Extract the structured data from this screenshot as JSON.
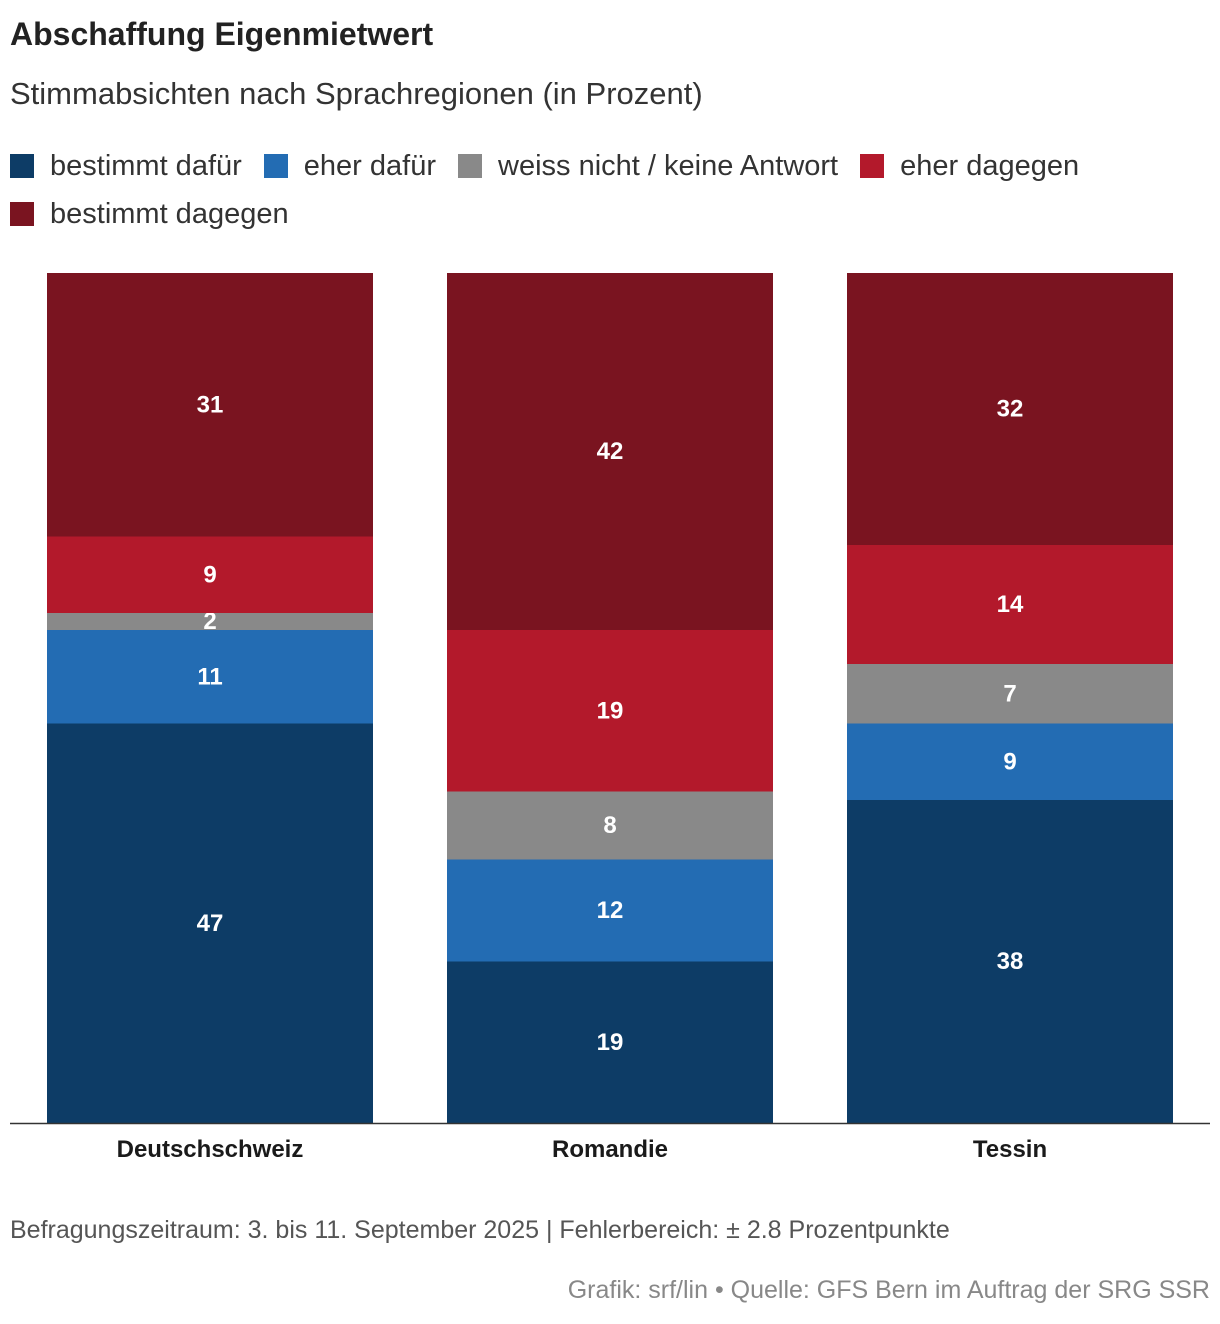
{
  "chart_data": {
    "type": "bar",
    "stacked": true,
    "title": "Abschaffung Eigenmietwert",
    "subtitle": "Stimmabsichten nach Sprachregionen (in Prozent)",
    "categories": [
      "Deutschschweiz",
      "Romandie",
      "Tessin"
    ],
    "series": [
      {
        "name": "bestimmt dafür",
        "color": "#0d3c66",
        "values": [
          47,
          19,
          38
        ]
      },
      {
        "name": "eher dafür",
        "color": "#236cb3",
        "values": [
          11,
          12,
          9
        ]
      },
      {
        "name": "weiss nicht / keine Antwort",
        "color": "#898989",
        "values": [
          2,
          8,
          7
        ]
      },
      {
        "name": "eher dagegen",
        "color": "#b3192b",
        "values": [
          9,
          19,
          14
        ]
      },
      {
        "name": "bestimmt dagegen",
        "color": "#7a1420",
        "values": [
          31,
          42,
          32
        ]
      }
    ],
    "ylim": [
      0,
      100
    ],
    "legend_position": "top-left",
    "grid": false
  },
  "footer": {
    "note": "Befragungszeitraum: 3. bis 11. September 2025 | Fehlerbereich: ± 2.8 Prozentpunkte",
    "source": "Grafik: srf/lin • Quelle: GFS Bern im Auftrag der SRG SSR"
  }
}
